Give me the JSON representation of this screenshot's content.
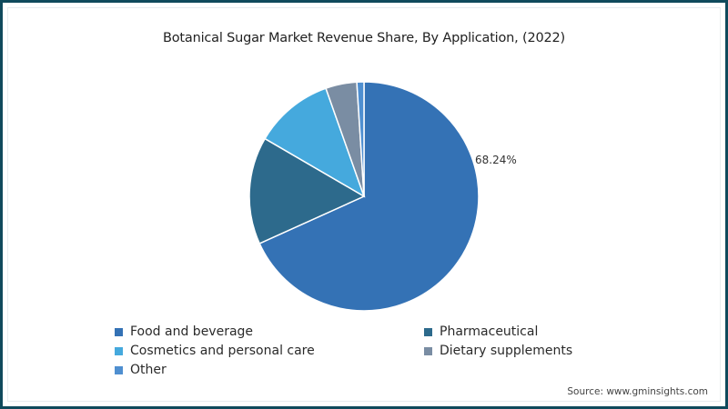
{
  "chart_data": {
    "type": "pie",
    "title": "Botanical Sugar Market Revenue Share, By Application, (2022)",
    "categories": [
      "Food and beverage",
      "Pharmaceutical",
      "Cosmetics and personal care",
      "Dietary supplements",
      "Other"
    ],
    "values": [
      68.24,
      15.16,
      11.2,
      4.4,
      1.0
    ],
    "colors": [
      "#3472b5",
      "#2d6a8c",
      "#45a9dd",
      "#7a8da3",
      "#4f8fd0"
    ],
    "data_labels": [
      "68.24%",
      "",
      "",
      "",
      ""
    ],
    "start_angle": "12 o'clock, clockwise",
    "legend_position": "bottom"
  },
  "title": "Botanical Sugar Market Revenue Share, By Application, (2022)",
  "slice_label": "68.24%",
  "legend": [
    {
      "label": "Food and beverage",
      "color": "#3472b5"
    },
    {
      "label": "Pharmaceutical",
      "color": "#2d6a8c"
    },
    {
      "label": "Cosmetics and personal care",
      "color": "#45a9dd"
    },
    {
      "label": "Dietary supplements",
      "color": "#7a8da3"
    },
    {
      "label": "Other",
      "color": "#4f8fd0"
    }
  ],
  "source": "Source: www.gminsights.com",
  "frame_color": "#0f4a5c"
}
